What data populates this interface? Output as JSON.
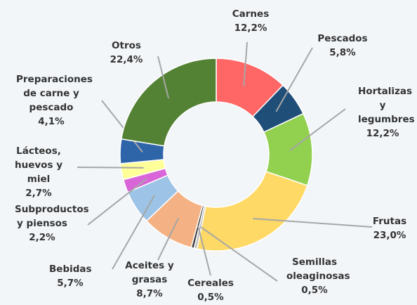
{
  "chart_data": {
    "type": "donut",
    "categories": [
      "Carnes",
      "Pescados",
      "Hortalizas y legumbres",
      "Frutas",
      "Semillas oleaginosas",
      "Cereales",
      "Aceites y grasas",
      "Bebidas",
      "Subproductos y piensos",
      "Lácteos, huevos y miel",
      "Preparaciones de carne y pescado",
      "Otros"
    ],
    "values": [
      12.2,
      5.8,
      12.2,
      23.0,
      0.5,
      0.5,
      8.7,
      5.7,
      2.2,
      2.7,
      4.1,
      22.4
    ],
    "value_labels": [
      "12,2%",
      "5,8%",
      "12,2%",
      "23,0%",
      "0,5%",
      "0,5%",
      "8,7%",
      "5,7%",
      "2,2%",
      "2,7%",
      "4,1%",
      "22,4%"
    ],
    "colors": [
      "#ff6666",
      "#1f4e79",
      "#92d050",
      "#ffd966",
      "#bfbfbf",
      "#404040",
      "#f4b183",
      "#9dc3e6",
      "#d966d9",
      "#ffff99",
      "#2e64a8",
      "#548235"
    ]
  }
}
